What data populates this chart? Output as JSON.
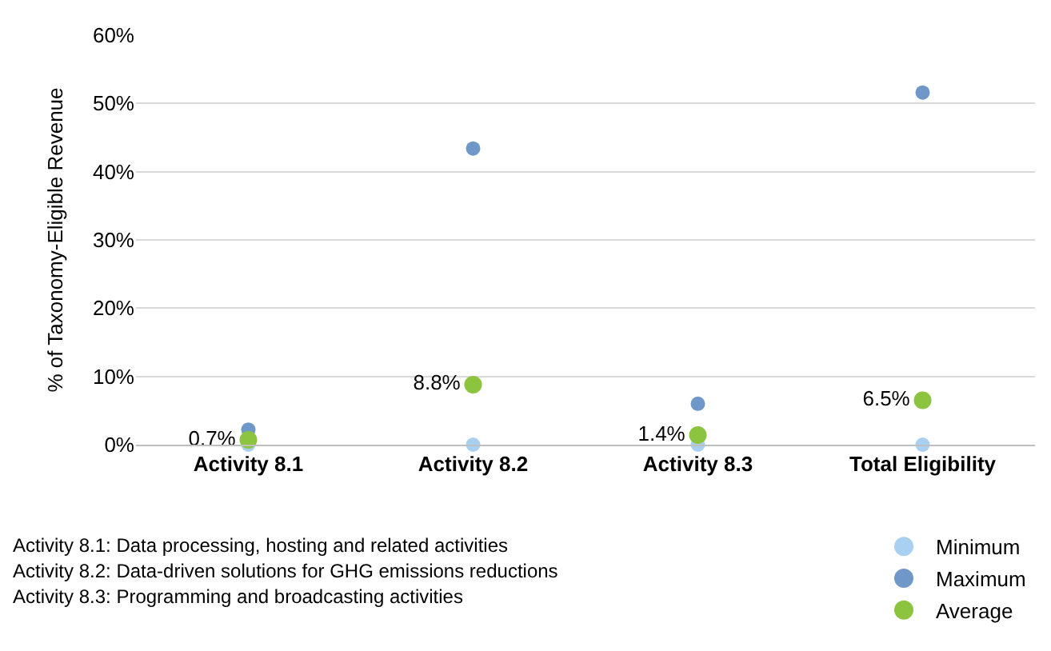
{
  "chart_data": {
    "type": "scatter",
    "ylabel": "% of Taxonomy-Eligible Revenue",
    "categories": [
      "Activity 8.1",
      "Activity 8.2",
      "Activity 8.3",
      "Total Eligibility"
    ],
    "series": [
      {
        "name": "Minimum",
        "color": "#a9d0f0",
        "values": [
          0,
          0,
          0,
          0
        ]
      },
      {
        "name": "Maximum",
        "color": "#6f98c8",
        "values": [
          2.2,
          43.4,
          6.0,
          51.6
        ]
      },
      {
        "name": "Average",
        "color": "#8cc43f",
        "values": [
          0.7,
          8.8,
          1.4,
          6.5
        ],
        "value_labels": [
          "0.7%",
          "8.8%",
          "1.4%",
          "6.5%"
        ]
      }
    ],
    "ylim": [
      0,
      60
    ],
    "yticks": [
      {
        "value": 0,
        "label": "0%"
      },
      {
        "value": 10,
        "label": "10%"
      },
      {
        "value": 20,
        "label": "20%"
      },
      {
        "value": 30,
        "label": "30%"
      },
      {
        "value": 40,
        "label": "40%"
      },
      {
        "value": 50,
        "label": "50%"
      },
      {
        "value": 60,
        "label": "60%"
      }
    ],
    "grid": "y",
    "legend": "bottom right",
    "marker": "circle",
    "annotations": [
      "Activity 8.1: Data processing, hosting and related activities",
      "Activity 8.2: Data-driven solutions for GHG emissions reductions",
      "Activity 8.3: Programming and broadcasting activities"
    ]
  }
}
